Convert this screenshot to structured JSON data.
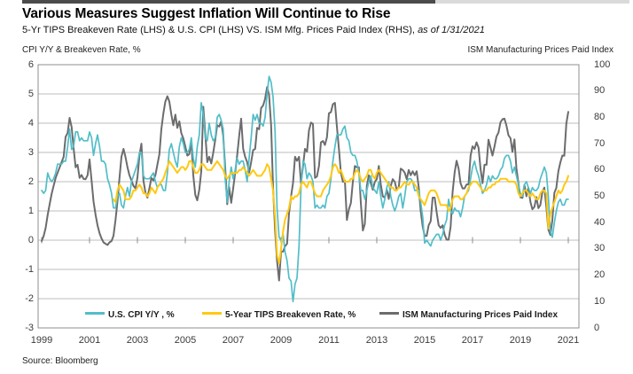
{
  "page": {
    "title": "Various Measures Suggest Inflation Will Continue to Rise",
    "subtitle_main": "5-Yr TIPS Breakeven Rate (LHS) & U.S. CPI (LHS) VS. ISM Mfg. Prices Paid Index (RHS),",
    "subtitle_asof": "as of 1/31/2021",
    "left_axis_caption": "CPI Y/Y & Breakeven Rate, %",
    "right_axis_caption": "ISM Manufacturing Prices Paid Index",
    "source": "Source: Bloomberg"
  },
  "chart_data": {
    "type": "line",
    "title": "Various Measures Suggest Inflation Will Continue to Rise",
    "frequency": "monthly",
    "x_start": "1999-01",
    "x_end": "2021-01",
    "x_tick_labels": [
      "1999",
      "2001",
      "2003",
      "2005",
      "2007",
      "2009",
      "2011",
      "2013",
      "2015",
      "2017",
      "2019",
      "2021"
    ],
    "left_axis": {
      "label": "CPI Y/Y & Breakeven Rate, %",
      "min": -3,
      "max": 6,
      "ticks": [
        6,
        5,
        4,
        3,
        2,
        1,
        0,
        -1,
        -2,
        -3
      ]
    },
    "right_axis": {
      "label": "ISM Manufacturing Prices Paid Index",
      "min": 0,
      "max": 100,
      "ticks": [
        100,
        90,
        80,
        70,
        60,
        50,
        40,
        30,
        20,
        10,
        0
      ]
    },
    "grid": "horizontal",
    "legend_position": "bottom-inside",
    "colors": {
      "cpi": "#52bec8",
      "breakeven": "#ffc913",
      "ism": "#6b6c6e",
      "gridline": "#bcbcbc",
      "frame": "#8f8f8f"
    },
    "series": [
      {
        "id": "cpi",
        "name": "U.S. CPI Y/Y , %",
        "axis": "left",
        "color": "#52bec8",
        "width": 1.7,
        "z": 1,
        "start_index": 0,
        "values": [
          1.7,
          1.6,
          1.7,
          2.3,
          2.1,
          2.0,
          2.1,
          2.3,
          2.6,
          2.6,
          2.6,
          2.7,
          2.7,
          3.2,
          3.8,
          3.1,
          3.2,
          3.7,
          3.7,
          3.4,
          3.5,
          3.4,
          3.4,
          3.4,
          3.7,
          3.5,
          2.9,
          3.3,
          3.6,
          3.2,
          2.7,
          2.7,
          2.6,
          2.1,
          1.9,
          1.6,
          1.1,
          1.1,
          1.5,
          1.6,
          1.2,
          1.1,
          1.5,
          1.8,
          1.5,
          2.0,
          2.2,
          2.4,
          2.6,
          3.0,
          3.0,
          2.2,
          2.1,
          2.1,
          2.1,
          2.2,
          2.3,
          2.0,
          1.8,
          1.9,
          1.9,
          1.7,
          1.7,
          2.3,
          3.1,
          3.3,
          3.0,
          2.7,
          2.5,
          3.2,
          3.5,
          3.3,
          3.0,
          3.0,
          3.1,
          3.5,
          2.8,
          2.5,
          3.2,
          3.6,
          4.7,
          4.3,
          3.5,
          3.4,
          4.0,
          3.6,
          3.4,
          3.5,
          4.2,
          4.3,
          4.1,
          3.8,
          2.1,
          1.3,
          2.0,
          2.5,
          2.1,
          2.4,
          2.8,
          2.6,
          2.7,
          2.7,
          2.4,
          2.0,
          2.8,
          3.5,
          4.3,
          4.1,
          4.3,
          4.0,
          4.0,
          3.9,
          4.2,
          5.0,
          5.6,
          5.4,
          4.9,
          3.7,
          1.1,
          0.1,
          0.0,
          0.2,
          -0.4,
          -0.7,
          -1.3,
          -1.4,
          -2.1,
          -1.5,
          -1.3,
          -0.2,
          1.8,
          2.7,
          2.6,
          2.1,
          2.3,
          2.2,
          2.0,
          1.1,
          1.2,
          1.1,
          1.1,
          1.2,
          1.1,
          1.5,
          1.6,
          2.1,
          2.7,
          3.2,
          3.6,
          3.6,
          3.6,
          3.8,
          3.9,
          3.5,
          3.4,
          3.0,
          2.9,
          2.9,
          2.7,
          2.3,
          1.7,
          1.7,
          1.4,
          1.7,
          2.0,
          2.2,
          1.8,
          1.7,
          1.6,
          2.0,
          1.5,
          1.1,
          1.4,
          1.8,
          2.0,
          1.5,
          1.2,
          1.0,
          1.2,
          1.5,
          1.6,
          1.1,
          1.5,
          2.0,
          2.1,
          2.1,
          2.0,
          1.7,
          1.7,
          1.7,
          1.3,
          0.8,
          -0.1,
          0.0,
          -0.1,
          -0.2,
          0.0,
          0.1,
          0.2,
          0.2,
          0.0,
          0.2,
          0.5,
          0.7,
          1.4,
          1.0,
          0.9,
          1.1,
          1.0,
          1.0,
          0.8,
          1.1,
          1.5,
          1.6,
          1.7,
          2.1,
          2.5,
          2.7,
          2.4,
          2.2,
          1.9,
          1.6,
          1.7,
          1.9,
          2.2,
          2.0,
          2.2,
          2.1,
          2.1,
          2.2,
          2.4,
          2.5,
          2.8,
          2.9,
          2.9,
          2.7,
          2.3,
          2.5,
          2.2,
          1.9,
          1.6,
          1.5,
          1.9,
          2.0,
          1.8,
          1.6,
          1.8,
          1.7,
          1.7,
          1.8,
          2.1,
          2.3,
          2.5,
          2.3,
          1.5,
          0.3,
          0.1,
          0.6,
          1.0,
          1.3,
          1.4,
          1.2,
          1.2,
          1.4,
          1.4
        ]
      },
      {
        "id": "breakeven",
        "name": "5-Year TIPS Breakeven Rate, %",
        "axis": "left",
        "color": "#ffc913",
        "width": 2,
        "z": 2,
        "start_index": 36,
        "values": [
          1.4,
          1.3,
          1.7,
          1.9,
          1.8,
          1.7,
          1.4,
          1.4,
          1.4,
          1.5,
          1.7,
          1.7,
          1.8,
          1.9,
          1.8,
          1.6,
          1.6,
          1.5,
          1.6,
          1.8,
          1.7,
          1.6,
          1.8,
          1.9,
          2.0,
          2.1,
          2.3,
          2.5,
          2.7,
          2.6,
          2.5,
          2.4,
          2.3,
          2.4,
          2.5,
          2.5,
          2.4,
          2.5,
          2.7,
          2.7,
          2.5,
          2.3,
          2.3,
          2.4,
          2.6,
          2.6,
          2.5,
          2.4,
          2.4,
          2.4,
          2.5,
          2.6,
          2.7,
          2.6,
          2.5,
          2.4,
          2.2,
          2.1,
          2.2,
          2.3,
          2.3,
          2.3,
          2.3,
          2.4,
          2.4,
          2.5,
          2.4,
          2.3,
          2.2,
          2.3,
          2.4,
          2.3,
          2.2,
          2.2,
          2.2,
          2.3,
          2.4,
          2.6,
          2.5,
          2.1,
          1.7,
          0.8,
          -0.5,
          -0.8,
          -0.3,
          0.3,
          0.7,
          0.9,
          1.1,
          1.5,
          1.4,
          1.5,
          1.5,
          1.6,
          1.9,
          2.0,
          1.9,
          1.8,
          2.0,
          2.0,
          1.8,
          1.6,
          1.5,
          1.5,
          1.5,
          1.7,
          1.8,
          1.9,
          2.0,
          2.2,
          2.5,
          2.6,
          2.5,
          2.3,
          2.4,
          2.2,
          2.0,
          2.0,
          2.0,
          2.1,
          2.1,
          2.3,
          2.4,
          2.3,
          2.1,
          2.0,
          2.1,
          2.2,
          2.4,
          2.4,
          2.2,
          2.1,
          2.3,
          2.4,
          2.3,
          2.2,
          2.1,
          2.0,
          1.9,
          1.8,
          1.8,
          1.7,
          1.7,
          1.8,
          1.8,
          1.9,
          2.0,
          1.9,
          1.9,
          2.0,
          2.0,
          1.9,
          1.8,
          1.5,
          1.4,
          1.3,
          1.2,
          1.4,
          1.6,
          1.7,
          1.7,
          1.7,
          1.6,
          1.4,
          1.2,
          1.2,
          1.2,
          1.2,
          1.0,
          1.1,
          1.4,
          1.5,
          1.5,
          1.5,
          1.4,
          1.4,
          1.5,
          1.6,
          1.8,
          1.9,
          2.0,
          2.0,
          2.0,
          1.9,
          1.8,
          1.7,
          1.7,
          1.7,
          1.8,
          1.8,
          1.9,
          1.9,
          2.0,
          2.0,
          2.1,
          2.1,
          2.1,
          2.1,
          2.0,
          2.0,
          2.0,
          2.0,
          1.9,
          1.6,
          1.5,
          1.6,
          1.7,
          1.7,
          1.6,
          1.5,
          1.6,
          1.5,
          1.4,
          1.4,
          1.6,
          1.7,
          1.7,
          1.6,
          0.4,
          0.9,
          1.1,
          1.3,
          1.5,
          1.7,
          1.6,
          1.7,
          1.9,
          2.0,
          2.2
        ]
      },
      {
        "id": "ism",
        "name": "ISM Manufacturing Prices Paid Index",
        "axis": "right",
        "color": "#6b6c6e",
        "width": 2,
        "z": 0,
        "start_index": 0,
        "values": [
          33,
          35,
          38,
          43,
          47,
          51,
          54,
          57,
          59,
          61,
          63,
          65,
          72.6,
          74.1,
          79.8,
          76.3,
          68.4,
          61.0,
          62.0,
          57.0,
          58.1,
          56.6,
          56.5,
          58.0,
          64.0,
          56.0,
          48.0,
          43.0,
          39.0,
          36.0,
          34.0,
          32.5,
          32.0,
          31.5,
          32.5,
          33.0,
          35.0,
          41.0,
          48.0,
          57.0,
          65.0,
          68.0,
          65.0,
          61.0,
          58.0,
          56.0,
          54.0,
          53.0,
          57.0,
          65.5,
          70.0,
          56.0,
          51.5,
          49.5,
          53.0,
          57.0,
          56.0,
          58.0,
          62.0,
          66.0,
          75.5,
          81.5,
          86.0,
          88.0,
          86.0,
          81.0,
          77.0,
          81.0,
          76.0,
          78.5,
          74.0,
          72.0,
          69.0,
          65.5,
          66.0,
          71.0,
          58.0,
          50.5,
          48.5,
          52.5,
          59.5,
          84.0,
          74.0,
          63.0,
          65.0,
          62.5,
          66.5,
          71.5,
          77.0,
          76.5,
          78.5,
          73.0,
          61.0,
          47.0,
          53.5,
          47.5,
          53.0,
          59.0,
          65.5,
          73.0,
          79.5,
          68.0,
          65.0,
          63.0,
          59.0,
          63.0,
          67.5,
          68.0,
          76.0,
          75.5,
          83.5,
          84.5,
          87.0,
          91.5,
          88.5,
          77.0,
          53.5,
          37.0,
          25.5,
          18.0,
          29.0,
          29.0,
          31.0,
          32.0,
          43.5,
          50.0,
          55.0,
          65.0,
          63.5,
          65.0,
          55.0,
          61.5,
          68.0,
          67.0,
          75.0,
          78.0,
          77.5,
          57.0,
          57.5,
          61.5,
          70.5,
          71.0,
          69.5,
          72.5,
          81.5,
          82.0,
          85.0,
          85.5,
          76.5,
          68.0,
          59.0,
          55.5,
          56.0,
          41.0,
          45.0,
          47.5,
          55.5,
          61.5,
          61.0,
          61.0,
          47.5,
          37.0,
          39.5,
          54.0,
          58.0,
          55.0,
          52.5,
          55.5,
          56.5,
          61.5,
          54.5,
          50.0,
          49.5,
          52.5,
          49.0,
          54.0,
          56.5,
          55.5,
          52.5,
          53.5,
          60.5,
          60.0,
          59.0,
          56.5,
          60.0,
          58.0,
          59.5,
          58.0,
          59.5,
          53.5,
          44.5,
          38.5,
          35.0,
          35.0,
          39.0,
          40.5,
          49.5,
          49.5,
          44.0,
          39.0,
          38.0,
          39.0,
          35.5,
          33.5,
          33.5,
          38.5,
          51.5,
          59.0,
          63.5,
          60.5,
          55.0,
          53.0,
          53.0,
          54.5,
          54.5,
          65.5,
          69.0,
          68.0,
          70.5,
          68.5,
          60.5,
          55.0,
          62.0,
          62.0,
          71.5,
          68.5,
          65.5,
          69.0,
          72.7,
          74.2,
          78.1,
          79.3,
          79.5,
          76.8,
          73.2,
          72.1,
          66.9,
          71.6,
          60.7,
          54.9,
          49.6,
          49.4,
          54.3,
          50.0,
          53.2,
          47.9,
          45.1,
          46.0,
          49.7,
          45.5,
          46.7,
          51.7,
          53.3,
          45.9,
          37.4,
          35.3,
          40.8,
          51.3,
          53.2,
          59.5,
          62.8,
          65.5,
          65.4,
          77.6,
          82.1
        ]
      }
    ]
  }
}
